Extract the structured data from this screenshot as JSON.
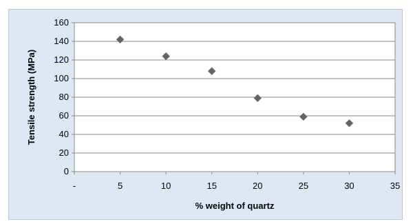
{
  "chart_data": {
    "type": "scatter",
    "title": "",
    "xlabel": "% weight of quartz",
    "ylabel": "Tensile strength (MPa)",
    "xlim": [
      0,
      35
    ],
    "ylim": [
      0,
      160
    ],
    "x_ticks": [
      0,
      5,
      10,
      15,
      20,
      25,
      30,
      35
    ],
    "x_tick_labels": [
      "-",
      "5",
      "10",
      "15",
      "20",
      "25",
      "30",
      "35"
    ],
    "y_ticks": [
      0,
      20,
      40,
      60,
      80,
      100,
      120,
      140,
      160
    ],
    "y_tick_labels": [
      "0",
      "20",
      "40",
      "60",
      "80",
      "100",
      "120",
      "140",
      "160"
    ],
    "grid": "horizontal",
    "legend": "none",
    "marker": "diamond",
    "colors": {
      "marker": "#646464",
      "plot_background": "#ffffff",
      "chart_background": "#dde8f4",
      "gridline": "#8a8a8a"
    },
    "series": [
      {
        "x": [
          5,
          10,
          15,
          20,
          25,
          30
        ],
        "y": [
          142,
          124,
          108,
          79,
          59,
          52
        ]
      }
    ]
  }
}
